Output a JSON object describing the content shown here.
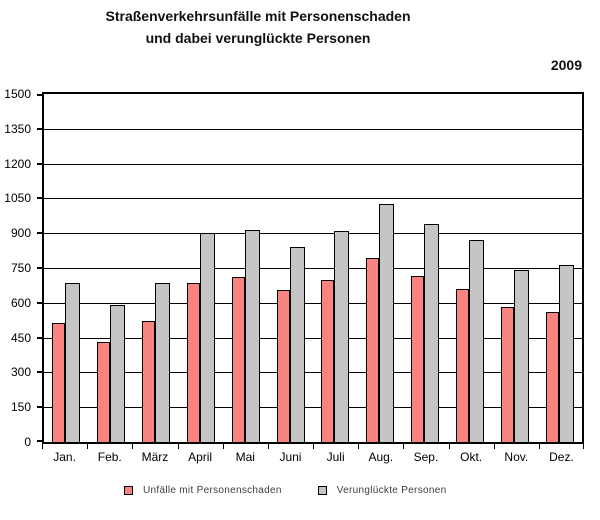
{
  "title": {
    "line1": "Straßenverkehrsunfälle mit Personenschaden",
    "line2": "und dabei verunglückte Personen"
  },
  "year_label": "2009",
  "chart_data": {
    "type": "bar",
    "title": "Straßenverkehrsunfälle mit Personenschaden und dabei verunglückte Personen",
    "subtitle": "2009",
    "categories": [
      "Jan.",
      "Feb.",
      "März",
      "April",
      "Mai",
      "Juni",
      "Juli",
      "Aug.",
      "Sep.",
      "Okt.",
      "Nov.",
      "Dez."
    ],
    "series": [
      {
        "name": "Unfälle mit Personenschaden",
        "color": "#f9837f",
        "values": [
          515,
          430,
          520,
          685,
          710,
          655,
          700,
          795,
          715,
          660,
          580,
          560
        ]
      },
      {
        "name": "Verunglückte Personen",
        "color": "#c5c5c5",
        "values": [
          685,
          590,
          685,
          900,
          915,
          840,
          910,
          1025,
          940,
          870,
          740,
          765
        ]
      }
    ],
    "xlabel": "",
    "ylabel": "",
    "ylim": [
      0,
      1500
    ],
    "ytick_step": 150,
    "grid": true,
    "gridline_color": "#000000",
    "bar_border_color": "#000000",
    "legend_position": "bottom"
  }
}
